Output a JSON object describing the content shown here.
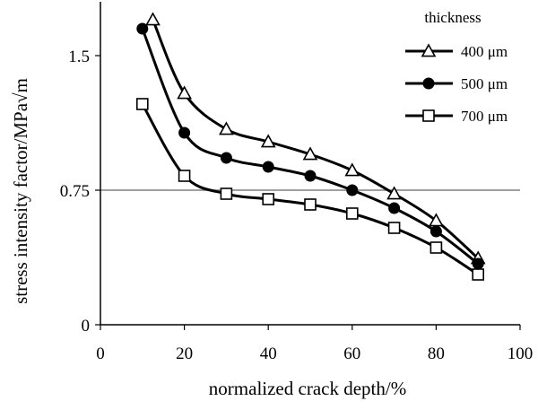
{
  "chart_data": {
    "type": "line",
    "title": "",
    "xlabel": "normalized crack depth/%",
    "ylabel": "stress intensity factor/MPa√m",
    "xlim": [
      0,
      100
    ],
    "ylim": [
      0,
      1.8
    ],
    "xticks": [
      0,
      20,
      40,
      60,
      80,
      100
    ],
    "yticks": [
      0,
      0.75,
      1.5
    ],
    "ytick_labels": [
      "0",
      "0.75",
      "1.5"
    ],
    "reference_line": {
      "y": 0.75,
      "color": "#808080"
    },
    "legend": {
      "title": "thickness",
      "position": "top-right"
    },
    "series": [
      {
        "name": "400 μm",
        "marker": "triangle-open",
        "x": [
          12.5,
          20,
          30,
          40,
          50,
          60,
          70,
          80,
          90
        ],
        "y": [
          1.7,
          1.29,
          1.09,
          1.02,
          0.95,
          0.86,
          0.73,
          0.58,
          0.37
        ]
      },
      {
        "name": "500 μm",
        "marker": "circle-filled",
        "x": [
          10,
          20,
          30,
          40,
          50,
          60,
          70,
          80,
          90
        ],
        "y": [
          1.65,
          1.07,
          0.93,
          0.88,
          0.83,
          0.75,
          0.65,
          0.52,
          0.34
        ]
      },
      {
        "name": "700 μm",
        "marker": "square-open",
        "x": [
          10,
          20,
          30,
          40,
          50,
          60,
          70,
          80,
          90
        ],
        "y": [
          1.23,
          0.83,
          0.73,
          0.7,
          0.67,
          0.62,
          0.54,
          0.43,
          0.28
        ]
      }
    ]
  },
  "colors": {
    "line": "#000000",
    "axis": "#000000",
    "reference": "#808080"
  }
}
